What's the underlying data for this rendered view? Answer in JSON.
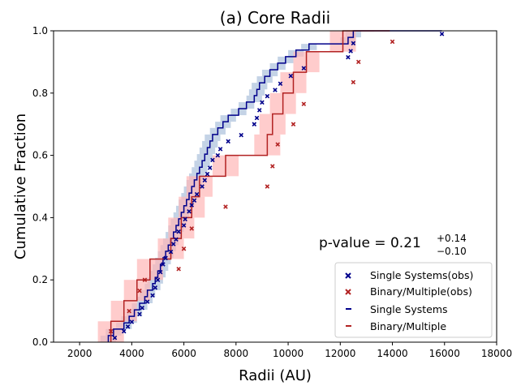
{
  "chart_data": {
    "type": "line",
    "title": "(a) Core Radii",
    "xlabel": "Radii (AU)",
    "ylabel": "Cumulative Fraction",
    "xlim": [
      1000,
      18000
    ],
    "ylim": [
      0,
      1.0
    ],
    "xticks": [
      2000,
      4000,
      6000,
      8000,
      10000,
      12000,
      14000,
      16000,
      18000
    ],
    "xtick_labels": [
      "2000",
      "4000",
      "6000",
      "8000",
      "10000",
      "12000",
      "14000",
      "16000",
      "18000"
    ],
    "yticks": [
      0,
      0.2,
      0.4,
      0.6,
      0.8,
      1.0
    ],
    "ytick_labels": [
      "0.0",
      "0.2",
      "0.4",
      "0.6",
      "0.8",
      "1.0"
    ],
    "annotation": {
      "prefix": "p-value = ",
      "value": "0.21",
      "upper": "+0.14",
      "lower": "−0.10"
    },
    "legend": {
      "location": "lower-right",
      "entries": [
        {
          "label": "Single Systems(obs)",
          "marker": "x",
          "color": "#00008b"
        },
        {
          "label": "Binary/Multiple(obs)",
          "marker": "x",
          "color": "#b22222"
        },
        {
          "label": "Single Systems",
          "marker": "line",
          "color": "#00008b"
        },
        {
          "label": "Binary/Multiple",
          "marker": "line",
          "color": "#b22222"
        }
      ]
    },
    "series": [
      {
        "name": "Single Systems",
        "color": "#00008b",
        "band_color": "#b0c4de",
        "uncertainty": 300,
        "x": [
          3100,
          3300,
          3700,
          3900,
          4100,
          4300,
          4500,
          4600,
          4800,
          4900,
          5000,
          5100,
          5200,
          5300,
          5400,
          5500,
          5600,
          5700,
          5800,
          5900,
          6000,
          6100,
          6200,
          6300,
          6400,
          6500,
          6600,
          6700,
          6800,
          6900,
          7000,
          7100,
          7300,
          7500,
          7700,
          8100,
          8400,
          8700,
          8800,
          8900,
          9100,
          9300,
          9600,
          9900,
          10300,
          10800,
          12300,
          12500,
          15900
        ],
        "y": [
          0.0,
          0.021,
          0.042,
          0.062,
          0.083,
          0.104,
          0.125,
          0.146,
          0.167,
          0.188,
          0.208,
          0.229,
          0.25,
          0.271,
          0.292,
          0.312,
          0.333,
          0.354,
          0.375,
          0.396,
          0.417,
          0.438,
          0.458,
          0.479,
          0.5,
          0.521,
          0.542,
          0.562,
          0.583,
          0.604,
          0.625,
          0.646,
          0.667,
          0.688,
          0.708,
          0.729,
          0.75,
          0.771,
          0.792,
          0.812,
          0.833,
          0.854,
          0.875,
          0.896,
          0.917,
          0.938,
          0.958,
          0.979,
          1.0
        ],
        "obs_x": [
          3350,
          3700,
          3850,
          4000,
          4300,
          4400,
          4600,
          4800,
          4900,
          5000,
          5100,
          5200,
          5300,
          5500,
          5600,
          5700,
          5800,
          6000,
          6050,
          6200,
          6300,
          6400,
          6500,
          6700,
          6800,
          6900,
          7000,
          7100,
          7300,
          7400,
          7700,
          8200,
          8700,
          8800,
          8900,
          9000,
          9200,
          9500,
          9700,
          10100,
          10600,
          12300,
          12400,
          12500,
          15900
        ],
        "obs_y": [
          0.014,
          0.035,
          0.05,
          0.065,
          0.09,
          0.11,
          0.13,
          0.15,
          0.175,
          0.2,
          0.225,
          0.25,
          0.27,
          0.29,
          0.315,
          0.33,
          0.355,
          0.375,
          0.395,
          0.42,
          0.44,
          0.455,
          0.475,
          0.5,
          0.52,
          0.54,
          0.56,
          0.585,
          0.6,
          0.62,
          0.645,
          0.665,
          0.7,
          0.72,
          0.745,
          0.77,
          0.79,
          0.81,
          0.83,
          0.855,
          0.88,
          0.915,
          0.935,
          0.96,
          0.99
        ]
      },
      {
        "name": "Binary/Multiple",
        "color": "#b22222",
        "band_color": "#ffb6b6",
        "uncertainty": 500,
        "x": [
          3200,
          3700,
          4200,
          4700,
          5500,
          5900,
          6300,
          6600,
          7600,
          9200,
          9400,
          9800,
          10200,
          10700,
          12100,
          12800,
          13900
        ],
        "y": [
          0.0,
          0.067,
          0.133,
          0.2,
          0.267,
          0.333,
          0.4,
          0.467,
          0.533,
          0.6,
          0.667,
          0.733,
          0.8,
          0.867,
          0.933,
          1.0,
          1.0
        ],
        "obs_x": [
          3200,
          3900,
          4300,
          4500,
          5800,
          6000,
          6300,
          7600,
          9200,
          9400,
          9600,
          10200,
          10600,
          12500,
          12700,
          14000
        ],
        "obs_y": [
          0.035,
          0.1,
          0.165,
          0.2,
          0.235,
          0.3,
          0.365,
          0.435,
          0.5,
          0.565,
          0.635,
          0.7,
          0.765,
          0.835,
          0.9,
          0.965
        ]
      }
    ]
  }
}
